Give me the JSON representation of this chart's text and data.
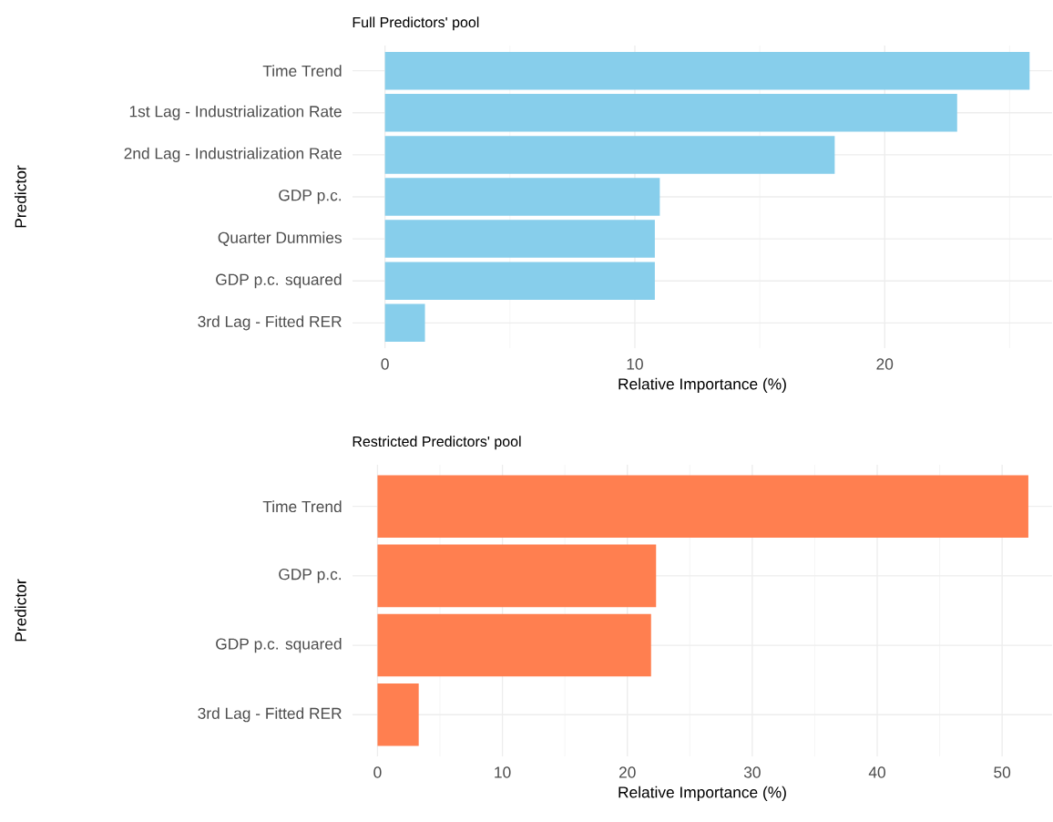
{
  "chart_data": [
    {
      "type": "bar",
      "orientation": "horizontal",
      "title": "Full Predictors' pool",
      "xlabel": "Relative Importance (%)",
      "ylabel": "Predictor",
      "categories": [
        "Time Trend",
        "1st Lag - Industrialization Rate",
        "2nd Lag - Industrialization Rate",
        "GDP p.c.",
        "Quarter Dummies",
        "GDP p.c. squared",
        "3rd Lag - Fitted RER"
      ],
      "values": [
        25.8,
        22.9,
        18.0,
        11.0,
        10.8,
        10.8,
        1.6
      ],
      "color": "#87ceeb",
      "xlim": [
        -1.3,
        26.7
      ],
      "xticks": [
        0,
        {
          "value": 5,
          "label": null
        },
        10,
        {
          "value": 15,
          "label": null
        },
        20,
        {
          "value": 25,
          "label": null
        }
      ],
      "grid": true
    },
    {
      "type": "bar",
      "orientation": "horizontal",
      "title": "Restricted Predictors' pool",
      "xlabel": "Relative Importance (%)",
      "ylabel": "Predictor",
      "categories": [
        "Time Trend",
        "GDP p.c.",
        "GDP p.c. squared",
        "3rd Lag - Fitted RER"
      ],
      "values": [
        52.1,
        22.3,
        21.9,
        3.3
      ],
      "color": "#ff7f50",
      "xlim": [
        -2.0,
        54.0
      ],
      "xticks": [
        0,
        {
          "value": 5,
          "label": null
        },
        10,
        {
          "value": 15,
          "label": null
        },
        20,
        {
          "value": 25,
          "label": null
        },
        30,
        {
          "value": 35,
          "label": null
        },
        40,
        {
          "value": 45,
          "label": null
        },
        50
      ],
      "grid": true
    }
  ]
}
